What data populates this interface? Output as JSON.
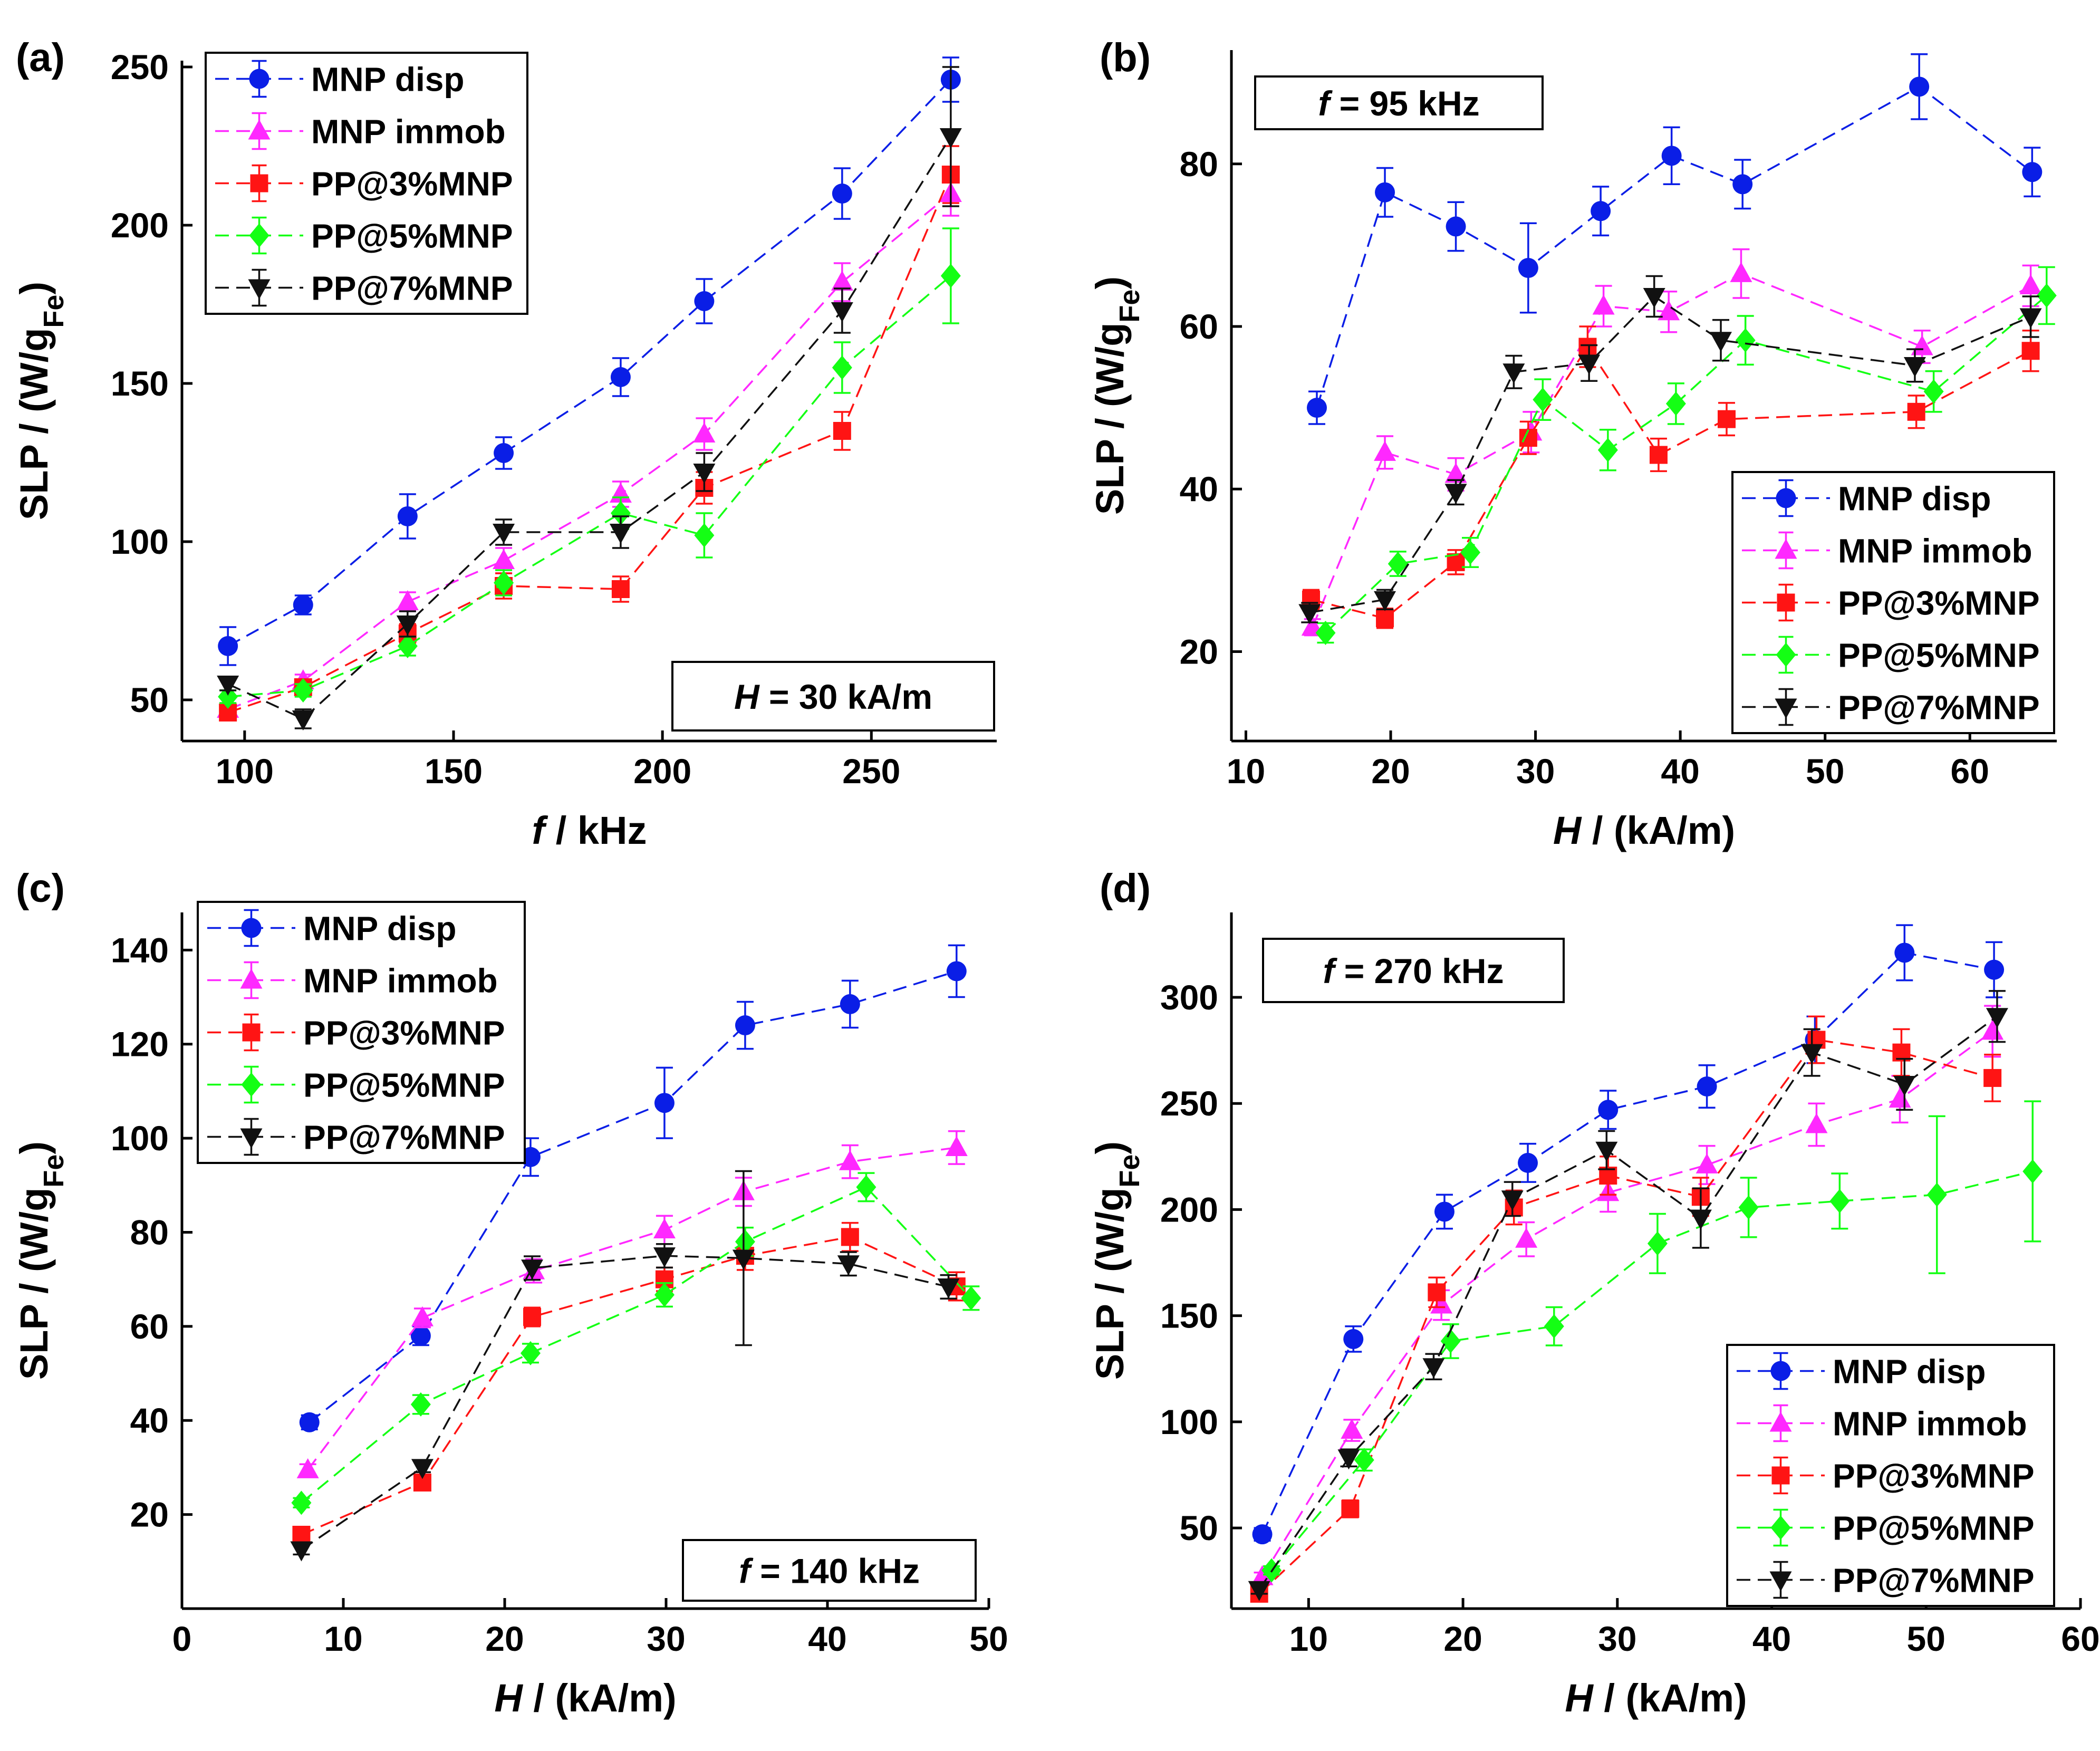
{
  "colors": {
    "MNP disp": "#0a1ee6",
    "MNP immob": "#ff28ff",
    "PP@3%MNP": "#ff1414",
    "PP@5%MNP": "#14ff14",
    "PP@7%MNP": "#111111"
  },
  "markers": {
    "MNP disp": "circle",
    "MNP immob": "triangle-up",
    "PP@3%MNP": "square",
    "PP@5%MNP": "diamond",
    "PP@7%MNP": "triangle-down"
  },
  "chart_data": [
    {
      "panel": "(a)",
      "type": "line",
      "xlabel": "f / kHz",
      "xlabel_italic": "f",
      "xlabel_rest": " / kHz",
      "ylabel": "SLP / (W/gFe)",
      "ylabel_main": "SLP / (W/g",
      "ylabel_sub": "Fe",
      "ylabel_close": ")",
      "xlim": [
        85,
        280
      ],
      "ylim": [
        37,
        252
      ],
      "xticks": [
        100,
        150,
        200,
        250
      ],
      "yticks": [
        50,
        100,
        150,
        200,
        250
      ],
      "condition": {
        "italic": "H",
        "rest": " = 30 kA/m",
        "text": "H = 30 kA/m",
        "position": "bottom-right"
      },
      "legend_position": "top-left",
      "series": [
        {
          "name": "MNP disp",
          "x": [
            96,
            114,
            139,
            162,
            190,
            210,
            243,
            269
          ],
          "y": [
            67,
            80,
            108,
            128,
            152,
            176,
            210,
            246
          ],
          "err": [
            6,
            3,
            7,
            5,
            6,
            7,
            8,
            7
          ]
        },
        {
          "name": "MNP immob",
          "x": [
            96,
            114,
            139,
            162,
            190,
            210,
            243,
            269
          ],
          "y": [
            47,
            56,
            81,
            94,
            115,
            134,
            182,
            210
          ],
          "err": [
            2,
            2,
            3,
            4,
            4,
            5,
            6,
            7
          ]
        },
        {
          "name": "PP@3%MNP",
          "x": [
            96,
            114,
            139,
            162,
            190,
            210,
            243,
            269
          ],
          "y": [
            46,
            54,
            71,
            86,
            85,
            117,
            135,
            216
          ],
          "err": [
            2,
            2,
            3,
            4,
            4,
            5,
            6,
            9
          ]
        },
        {
          "name": "PP@5%MNP",
          "x": [
            96,
            114,
            139,
            162,
            190,
            210,
            243,
            269
          ],
          "y": [
            51,
            53,
            67,
            87,
            109,
            102,
            155,
            184
          ],
          "err": [
            2,
            2,
            3,
            4,
            5,
            7,
            8,
            15
          ]
        },
        {
          "name": "PP@7%MNP",
          "x": [
            96,
            114,
            139,
            162,
            190,
            210,
            243,
            269
          ],
          "y": [
            55,
            44,
            74,
            103,
            103,
            122,
            173,
            228
          ],
          "err": [
            2,
            3,
            4,
            4,
            5,
            6,
            7,
            22
          ]
        }
      ]
    },
    {
      "panel": "(b)",
      "type": "line",
      "xlabel": "H / (kA/m)",
      "xlabel_italic": "H",
      "xlabel_rest": " / (kA/m)",
      "ylabel": "SLP / (W/gFe)",
      "ylabel_main": "SLP / (W/g",
      "ylabel_sub": "Fe",
      "ylabel_close": ")",
      "xlim": [
        9,
        66
      ],
      "ylim": [
        9,
        94
      ],
      "xticks": [
        10,
        20,
        30,
        40,
        50,
        60
      ],
      "yticks": [
        20,
        40,
        60,
        80
      ],
      "condition": {
        "italic": "f",
        "rest": " = 95 kHz",
        "text": "f = 95 kHz",
        "position": "top-left"
      },
      "legend_position": "bottom-right",
      "series": [
        {
          "name": "MNP disp",
          "x": [
            14.9,
            19.6,
            24.5,
            29.5,
            34.5,
            39.4,
            44.3,
            56.5,
            64.3
          ],
          "y": [
            50,
            76.5,
            72.3,
            67.2,
            74.2,
            81,
            77.5,
            89.5,
            79
          ],
          "err": [
            2,
            3,
            3,
            5.5,
            3,
            3.5,
            3,
            4,
            3
          ]
        },
        {
          "name": "MNP immob",
          "x": [
            14.6,
            19.6,
            24.5,
            29.7,
            34.7,
            39.2,
            44.2,
            56.7,
            64.2
          ],
          "y": [
            23,
            44.5,
            41.8,
            47,
            62.5,
            61.8,
            66.5,
            57.5,
            65
          ],
          "err": [
            1,
            2,
            2,
            2.5,
            2.5,
            2.5,
            3,
            2,
            2.5
          ]
        },
        {
          "name": "PP@3%MNP",
          "x": [
            14.5,
            19.6,
            24.5,
            29.5,
            33.6,
            38.5,
            43.2,
            56.3,
            64.2
          ],
          "y": [
            26.4,
            24.1,
            31,
            46.3,
            57.5,
            44.2,
            48.6,
            49.5,
            57
          ],
          "err": [
            1.2,
            1.2,
            1.5,
            2,
            2.5,
            2,
            2,
            2,
            2.5
          ]
        },
        {
          "name": "PP@5%MNP",
          "x": [
            15.5,
            20.5,
            25.5,
            30.5,
            35,
            39.7,
            44.5,
            57.5,
            65.3
          ],
          "y": [
            22.3,
            30.8,
            32.2,
            51,
            44.8,
            50.5,
            58.3,
            52,
            63.8
          ],
          "err": [
            1.2,
            1.5,
            1.8,
            2.5,
            2.5,
            2.5,
            3,
            2.5,
            3.5
          ]
        },
        {
          "name": "PP@7%MNP",
          "x": [
            14.4,
            19.6,
            24.5,
            28.5,
            33.7,
            38.2,
            42.8,
            56.2,
            64.2
          ],
          "y": [
            24.8,
            26.4,
            39.6,
            54.4,
            55.5,
            63.7,
            58.3,
            55.2,
            61.2
          ],
          "err": [
            1.2,
            1.2,
            1.5,
            2,
            2.2,
            2.5,
            2.5,
            2,
            2.5
          ]
        }
      ]
    },
    {
      "panel": "(c)",
      "type": "line",
      "xlabel": "H / (kA/m)",
      "xlabel_italic": "H",
      "xlabel_rest": " / (kA/m)",
      "ylabel": "SLP / (W/gFe)",
      "ylabel_main": "SLP / (W/g",
      "ylabel_sub": "Fe",
      "ylabel_close": ")",
      "xlim": [
        0,
        50
      ],
      "ylim": [
        0,
        148
      ],
      "xticks": [
        0,
        10,
        20,
        30,
        40,
        50
      ],
      "yticks": [
        20,
        40,
        60,
        80,
        100,
        120,
        140
      ],
      "condition": {
        "italic": "f",
        "rest": " = 140 kHz",
        "text": "f = 140 kHz",
        "position": "bottom-right"
      },
      "legend_position": "top-left",
      "series": [
        {
          "name": "MNP disp",
          "x": [
            7.9,
            14.8,
            21.6,
            29.9,
            34.9,
            41.4,
            48
          ],
          "y": [
            39.6,
            58,
            96,
            107.5,
            124,
            128.5,
            135.5
          ],
          "err": [
            1.5,
            2,
            4,
            7.5,
            5,
            5,
            5.5
          ]
        },
        {
          "name": "MNP immob",
          "x": [
            7.8,
            14.9,
            21.8,
            29.9,
            34.8,
            41.4,
            48
          ],
          "y": [
            29.5,
            61.8,
            71.8,
            80.5,
            88.6,
            95,
            98
          ],
          "err": [
            1.2,
            2,
            2.5,
            3,
            3,
            3.5,
            3.5
          ]
        },
        {
          "name": "PP@3%MNP",
          "x": [
            7.4,
            14.9,
            21.7,
            29.9,
            34.9,
            41.4,
            48
          ],
          "y": [
            15.7,
            26.8,
            62,
            70,
            75,
            79,
            68.5
          ],
          "err": [
            1,
            1,
            2,
            2.5,
            3,
            3,
            3
          ]
        },
        {
          "name": "PP@5%MNP",
          "x": [
            7.4,
            14.8,
            21.6,
            29.9,
            34.9,
            42.4,
            48.9
          ],
          "y": [
            22.5,
            43.4,
            54.3,
            66.7,
            78,
            89.6,
            66
          ],
          "err": [
            1,
            2,
            2,
            2.5,
            3,
            3,
            2.5
          ]
        },
        {
          "name": "PP@7%MNP",
          "x": [
            7.4,
            14.9,
            21.7,
            29.9,
            34.8,
            41.3,
            47.5
          ],
          "y": [
            12.5,
            30,
            72.4,
            75,
            74.5,
            73.3,
            68.4
          ],
          "err": [
            1,
            1,
            2.5,
            2.5,
            18.5,
            2.5,
            2.5
          ]
        }
      ]
    },
    {
      "panel": "(d)",
      "type": "line",
      "xlabel": "H / (kA/m)",
      "xlabel_italic": "H",
      "xlabel_rest": " / (kA/m)",
      "ylabel": "SLP / (W/gFe)",
      "ylabel_main": "SLP / (W/g",
      "ylabel_sub": "Fe",
      "ylabel_close": ")",
      "xlim": [
        5,
        60
      ],
      "ylim": [
        12,
        340
      ],
      "xticks": [
        10,
        20,
        30,
        40,
        50,
        60
      ],
      "yticks": [
        50,
        100,
        150,
        200,
        250,
        300
      ],
      "condition": {
        "italic": "f",
        "rest": " = 270 kHz",
        "text": "f = 270 kHz",
        "position": "top-left"
      },
      "legend_position": "bottom-right",
      "series": [
        {
          "name": "MNP disp",
          "x": [
            7,
            12.9,
            18.8,
            24.2,
            29.4,
            35.8,
            42.8,
            48.6,
            54.4
          ],
          "y": [
            47,
            139,
            199,
            222,
            247,
            258,
            280,
            321,
            313
          ],
          "err": [
            3,
            6,
            8,
            9,
            9,
            10,
            11,
            13,
            13
          ]
        },
        {
          "name": "MNP immob",
          "x": [
            7,
            12.8,
            18.6,
            24.1,
            29.4,
            35.8,
            42.9,
            48.3,
            54.3
          ],
          "y": [
            27,
            96,
            155,
            186,
            208,
            221,
            240,
            252,
            284
          ],
          "err": [
            2,
            5,
            7,
            8,
            9,
            9,
            10,
            11,
            12
          ]
        },
        {
          "name": "PP@3%MNP",
          "x": [
            6.8,
            12.7,
            18.3,
            23.3,
            29.4,
            35.4,
            42.9,
            48.4,
            54.3
          ],
          "y": [
            19,
            59,
            161,
            201,
            216,
            206,
            280,
            274,
            262
          ],
          "err": [
            2,
            4,
            7,
            8,
            9,
            9,
            11,
            11,
            11
          ]
        },
        {
          "name": "PP@5%MNP",
          "x": [
            7.6,
            13.6,
            19.2,
            25.9,
            32.6,
            38.5,
            44.4,
            50.7,
            56.9
          ],
          "y": [
            30,
            82,
            138,
            145,
            184,
            201,
            204,
            207,
            218
          ],
          "err": [
            2,
            5,
            8,
            9,
            14,
            14,
            13,
            37,
            33
          ]
        },
        {
          "name": "PP@7%MNP",
          "x": [
            6.8,
            12.6,
            18.1,
            23.2,
            29.3,
            35.4,
            42.6,
            48.6,
            54.6
          ],
          "y": [
            21,
            83,
            126,
            205,
            228,
            196,
            274,
            259,
            291
          ],
          "err": [
            2,
            4,
            6,
            8,
            9,
            14,
            11,
            12,
            12
          ]
        }
      ]
    }
  ]
}
